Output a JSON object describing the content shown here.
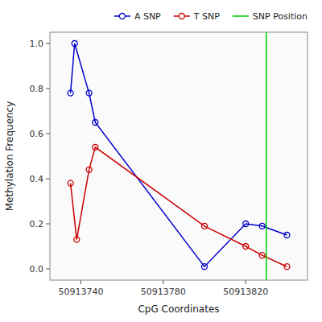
{
  "chart_data": {
    "type": "line",
    "xlabel": "CpG Coordinates",
    "ylabel": "Methylation Frequency",
    "series": [
      {
        "name": "A SNP",
        "color": "#0000CC",
        "marker": "circle",
        "x": [
          50913735,
          50913737,
          50913744,
          50913747,
          50913800,
          50913820,
          50913828,
          50913840
        ],
        "values": [
          0.78,
          1.0,
          0.78,
          0.65,
          0.01,
          0.2,
          0.19,
          0.15
        ]
      },
      {
        "name": "T SNP",
        "color": "#CC0000",
        "marker": "circle",
        "x": [
          50913735,
          50913738,
          50913744,
          50913747,
          50913800,
          50913820,
          50913828,
          50913840
        ],
        "values": [
          0.38,
          0.13,
          0.44,
          0.54,
          0.19,
          0.1,
          0.06,
          0.01
        ]
      }
    ],
    "vline": {
      "name": "SNP Position",
      "color": "#00CC00",
      "x": 50913830
    },
    "xlim": [
      50913725,
      50913850
    ],
    "ylim": [
      -0.05,
      1.05
    ],
    "xticks": [
      50913740,
      50913780,
      50913820
    ],
    "yticks": [
      {
        "value": 0.0,
        "label": "0.0"
      },
      0.2,
      0.4,
      0.6,
      0.8,
      {
        "value": 1.0,
        "label": "1.0"
      }
    ],
    "grid": false,
    "legend": "top"
  }
}
